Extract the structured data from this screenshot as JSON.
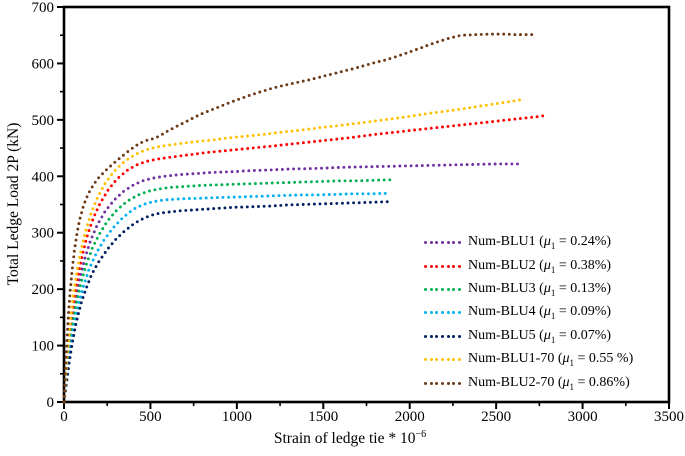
{
  "chart_data": {
    "type": "scatter",
    "title": "",
    "xlabel_main": "Strain of ledge tie * 10",
    "xlabel_sup": "−6",
    "ylabel": "Total Ledge Load 2P (kN)",
    "xlim": [
      0,
      3500
    ],
    "ylim": [
      0,
      700
    ],
    "x_major_ticks": [
      0,
      500,
      1000,
      1500,
      2000,
      2500,
      3000,
      3500
    ],
    "x_minor_step": 250,
    "y_major_ticks": [
      0,
      100,
      200,
      300,
      400,
      500,
      600,
      700
    ],
    "y_minor_step": 50,
    "grid": false,
    "legend_position": "inside-lower-right",
    "marker": "dot",
    "legend": {
      "mu_symbol": "μ",
      "mu_sub": "1",
      "equals": " = "
    },
    "series": [
      {
        "name": "Num-BLU1",
        "mu": "0.24%",
        "color": "#7030A0",
        "points": [
          [
            0,
            0
          ],
          [
            10,
            35
          ],
          [
            20,
            70
          ],
          [
            33,
            108
          ],
          [
            49,
            146
          ],
          [
            68,
            183
          ],
          [
            91,
            219
          ],
          [
            119,
            253
          ],
          [
            152,
            285
          ],
          [
            191,
            313
          ],
          [
            236,
            337
          ],
          [
            287,
            357
          ],
          [
            343,
            373
          ],
          [
            403,
            385
          ],
          [
            463,
            393
          ],
          [
            520,
            397
          ],
          [
            578,
            400
          ],
          [
            670,
            403
          ],
          [
            770,
            405
          ],
          [
            870,
            407
          ],
          [
            970,
            408
          ],
          [
            1070,
            410
          ],
          [
            1170,
            411
          ],
          [
            1320,
            413
          ],
          [
            1470,
            414
          ],
          [
            1620,
            416
          ],
          [
            1770,
            417
          ],
          [
            1920,
            418
          ],
          [
            2070,
            419
          ],
          [
            2220,
            420
          ],
          [
            2370,
            421
          ],
          [
            2520,
            422
          ],
          [
            2650,
            422
          ]
        ]
      },
      {
        "name": "Num-BLU2",
        "mu": "0.38%",
        "color": "#FF0000",
        "points": [
          [
            0,
            0
          ],
          [
            9,
            35
          ],
          [
            18,
            72
          ],
          [
            29,
            110
          ],
          [
            43,
            148
          ],
          [
            60,
            186
          ],
          [
            81,
            224
          ],
          [
            106,
            261
          ],
          [
            136,
            296
          ],
          [
            171,
            327
          ],
          [
            212,
            354
          ],
          [
            258,
            377
          ],
          [
            309,
            396
          ],
          [
            363,
            410
          ],
          [
            418,
            420
          ],
          [
            472,
            426
          ],
          [
            530,
            430
          ],
          [
            620,
            434
          ],
          [
            720,
            438
          ],
          [
            820,
            442
          ],
          [
            920,
            445
          ],
          [
            1020,
            448
          ],
          [
            1120,
            451
          ],
          [
            1220,
            454
          ],
          [
            1370,
            459
          ],
          [
            1520,
            464
          ],
          [
            1670,
            469
          ],
          [
            1820,
            475
          ],
          [
            1970,
            480
          ],
          [
            2120,
            485
          ],
          [
            2270,
            490
          ],
          [
            2420,
            495
          ],
          [
            2570,
            500
          ],
          [
            2720,
            505
          ],
          [
            2770,
            507
          ]
        ]
      },
      {
        "name": "Num-BLU3",
        "mu": "0.13%",
        "color": "#00B050",
        "points": [
          [
            0,
            0
          ],
          [
            11,
            35
          ],
          [
            22,
            70
          ],
          [
            36,
            107
          ],
          [
            53,
            143
          ],
          [
            74,
            178
          ],
          [
            99,
            212
          ],
          [
            129,
            244
          ],
          [
            164,
            273
          ],
          [
            205,
            298
          ],
          [
            252,
            321
          ],
          [
            305,
            340
          ],
          [
            362,
            355
          ],
          [
            422,
            366
          ],
          [
            482,
            373
          ],
          [
            540,
            377
          ],
          [
            600,
            380
          ],
          [
            700,
            382
          ],
          [
            800,
            384
          ],
          [
            900,
            385
          ],
          [
            1000,
            386
          ],
          [
            1100,
            387
          ],
          [
            1200,
            388
          ],
          [
            1300,
            389
          ],
          [
            1400,
            390
          ],
          [
            1500,
            391
          ],
          [
            1600,
            392
          ],
          [
            1700,
            392
          ],
          [
            1800,
            393
          ],
          [
            1910,
            394
          ]
        ]
      },
      {
        "name": "Num-BLU4",
        "mu": "0.09%",
        "color": "#00B0F0",
        "points": [
          [
            0,
            0
          ],
          [
            13,
            35
          ],
          [
            26,
            70
          ],
          [
            42,
            105
          ],
          [
            62,
            140
          ],
          [
            86,
            175
          ],
          [
            114,
            207
          ],
          [
            147,
            237
          ],
          [
            186,
            263
          ],
          [
            231,
            287
          ],
          [
            282,
            308
          ],
          [
            338,
            326
          ],
          [
            398,
            341
          ],
          [
            458,
            350
          ],
          [
            515,
            355
          ],
          [
            575,
            358
          ],
          [
            670,
            360
          ],
          [
            770,
            361
          ],
          [
            870,
            362
          ],
          [
            970,
            363
          ],
          [
            1070,
            364
          ],
          [
            1170,
            365
          ],
          [
            1270,
            366
          ],
          [
            1370,
            367
          ],
          [
            1470,
            367
          ],
          [
            1570,
            368
          ],
          [
            1670,
            369
          ],
          [
            1770,
            369
          ],
          [
            1890,
            370
          ]
        ]
      },
      {
        "name": "Num-BLU5",
        "mu": "0.07%",
        "color": "#002060",
        "points": [
          [
            0,
            0
          ],
          [
            15,
            35
          ],
          [
            30,
            70
          ],
          [
            48,
            105
          ],
          [
            70,
            140
          ],
          [
            96,
            172
          ],
          [
            126,
            200
          ],
          [
            160,
            226
          ],
          [
            200,
            248
          ],
          [
            245,
            268
          ],
          [
            295,
            287
          ],
          [
            350,
            303
          ],
          [
            410,
            317
          ],
          [
            470,
            327
          ],
          [
            525,
            333
          ],
          [
            585,
            336
          ],
          [
            680,
            339
          ],
          [
            780,
            341
          ],
          [
            880,
            343
          ],
          [
            980,
            345
          ],
          [
            1080,
            346
          ],
          [
            1180,
            347
          ],
          [
            1280,
            349
          ],
          [
            1380,
            350
          ],
          [
            1480,
            351
          ],
          [
            1580,
            352
          ],
          [
            1680,
            353
          ],
          [
            1780,
            354
          ],
          [
            1870,
            355
          ]
        ]
      },
      {
        "name": "Num-BLU1-70",
        "mu": "0.55 %",
        "color": "#FFC000",
        "points": [
          [
            0,
            0
          ],
          [
            8,
            35
          ],
          [
            16,
            72
          ],
          [
            26,
            112
          ],
          [
            39,
            152
          ],
          [
            55,
            192
          ],
          [
            74,
            230
          ],
          [
            97,
            267
          ],
          [
            124,
            302
          ],
          [
            156,
            334
          ],
          [
            193,
            362
          ],
          [
            235,
            386
          ],
          [
            282,
            406
          ],
          [
            333,
            422
          ],
          [
            386,
            434
          ],
          [
            440,
            443
          ],
          [
            495,
            449
          ],
          [
            555,
            453
          ],
          [
            650,
            457
          ],
          [
            750,
            461
          ],
          [
            850,
            464
          ],
          [
            950,
            468
          ],
          [
            1050,
            471
          ],
          [
            1150,
            474
          ],
          [
            1250,
            478
          ],
          [
            1350,
            481
          ],
          [
            1500,
            487
          ],
          [
            1650,
            492
          ],
          [
            1800,
            498
          ],
          [
            1950,
            504
          ],
          [
            2100,
            511
          ],
          [
            2250,
            517
          ],
          [
            2400,
            524
          ],
          [
            2550,
            531
          ],
          [
            2650,
            536
          ]
        ]
      },
      {
        "name": "Num-BLU2-70",
        "mu": "0.86%",
        "color": "#6B3A17",
        "points": [
          [
            0,
            0
          ],
          [
            6,
            40
          ],
          [
            12,
            80
          ],
          [
            19,
            120
          ],
          [
            27,
            160
          ],
          [
            36,
            198
          ],
          [
            47,
            234
          ],
          [
            60,
            268
          ],
          [
            75,
            299
          ],
          [
            93,
            326
          ],
          [
            114,
            349
          ],
          [
            139,
            368
          ],
          [
            168,
            384
          ],
          [
            202,
            398
          ],
          [
            240,
            410
          ],
          [
            283,
            422
          ],
          [
            330,
            434
          ],
          [
            378,
            446
          ],
          [
            420,
            455
          ],
          [
            455,
            461
          ],
          [
            490,
            465
          ],
          [
            525,
            467
          ],
          [
            560,
            473
          ],
          [
            610,
            482
          ],
          [
            700,
            496
          ],
          [
            790,
            510
          ],
          [
            880,
            521
          ],
          [
            970,
            532
          ],
          [
            1060,
            542
          ],
          [
            1150,
            551
          ],
          [
            1240,
            559
          ],
          [
            1330,
            565
          ],
          [
            1420,
            571
          ],
          [
            1510,
            578
          ],
          [
            1600,
            585
          ],
          [
            1690,
            592
          ],
          [
            1780,
            600
          ],
          [
            1870,
            607
          ],
          [
            1960,
            616
          ],
          [
            2050,
            626
          ],
          [
            2140,
            636
          ],
          [
            2230,
            645
          ],
          [
            2300,
            650
          ],
          [
            2380,
            651
          ],
          [
            2460,
            652
          ],
          [
            2540,
            652
          ],
          [
            2620,
            651
          ],
          [
            2710,
            651
          ]
        ]
      }
    ]
  }
}
